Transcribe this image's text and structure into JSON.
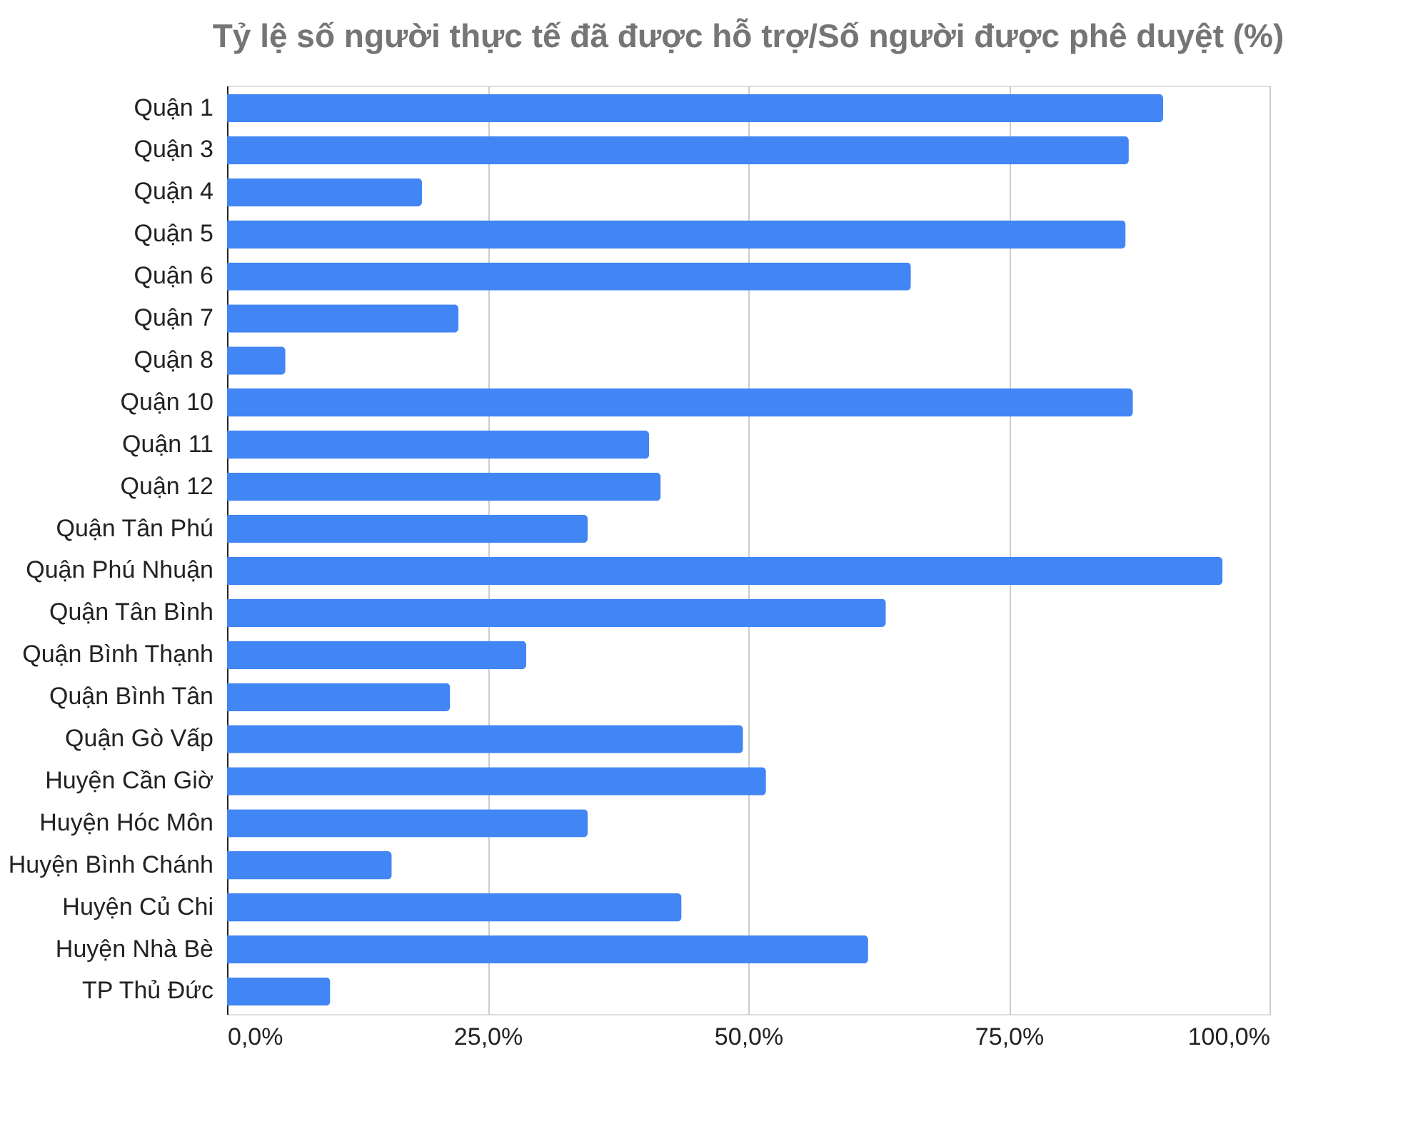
{
  "chart_data": {
    "type": "bar",
    "orientation": "horizontal",
    "title": "Tỷ lệ số người thực tế đã được hỗ trợ/Số người được phê duyệt (%)",
    "categories": [
      "Quận 1",
      "Quận 3",
      "Quận 4",
      "Quận 5",
      "Quận 6",
      "Quận 7",
      "Quận 8",
      "Quận 10",
      "Quận 11",
      "Quận 12",
      "Quận Tân Phú",
      "Quận Phú Nhuận",
      "Quận Tân Bình",
      "Quận Bình Thạnh",
      "Quận Bình Tân",
      "Quận Gò Vấp",
      "Huyện Cần Giờ",
      "Huyện Hóc Môn",
      "Huyện Bình Chánh",
      "Huyện Củ Chi",
      "Huyện Nhà Bè",
      "TP Thủ Đức"
    ],
    "values": [
      89.8,
      86.5,
      18.7,
      86.2,
      65.6,
      22.2,
      5.6,
      86.9,
      40.5,
      41.6,
      34.6,
      95.5,
      63.2,
      28.7,
      21.4,
      49.5,
      51.7,
      34.6,
      15.8,
      43.6,
      61.5,
      9.9
    ],
    "color": "#4285f4",
    "xlim": [
      0,
      100
    ],
    "xticks": [
      {
        "value": 0,
        "label": "0,0%"
      },
      {
        "value": 25,
        "label": "25,0%"
      },
      {
        "value": 50,
        "label": "50,0%"
      },
      {
        "value": 75,
        "label": "75,0%"
      },
      {
        "value": 100,
        "label": "100,0%"
      }
    ],
    "grid": "x"
  }
}
